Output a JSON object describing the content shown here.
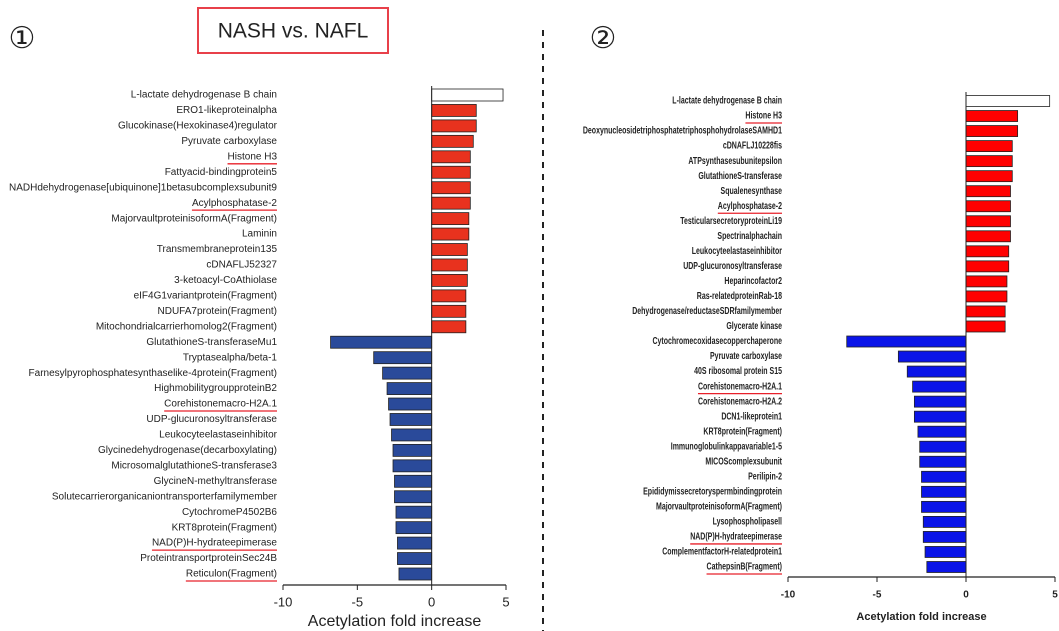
{
  "title": "NASH vs. NAFL",
  "chart_data": [
    {
      "type": "barh",
      "panel": "①",
      "xlabel": "Acetylation fold increase",
      "xlim": [
        -10,
        5
      ],
      "xticks": [
        -10,
        -5,
        0,
        5
      ],
      "categories": [
        "L-lactate dehydrogenase B chain",
        "ERO1-likeproteinalpha",
        "Glucokinase(Hexokinase4)regulator",
        "Pyruvate carboxylase",
        "Histone H3",
        "Fattyacid-bindingprotein5",
        "NADHdehydrogenase[ubiquinone]1betasubcomplexsubunit9",
        "Acylphosphatase-2",
        "MajorvaultproteinisoformA(Fragment)",
        "Laminin",
        "Transmembraneprotein135",
        "cDNAFLJ52327",
        "3-ketoacyl-CoAthiolase",
        "eIF4G1variantprotein(Fragment)",
        "NDUFA7protein(Fragment)",
        "Mitochondrialcarrierhomolog2(Fragment)",
        "GlutathioneS-transferaseMu1",
        "Tryptasealpha/beta-1",
        "Farnesylpyrophosphatesynthaselike-4protein(Fragment)",
        "HighmobilitygroupproteinB2",
        "Corehistonemacro-H2A.1",
        "UDP-glucuronosyltransferase",
        "Leukocyteelastaseinhibitor",
        "Glycinedehydrogenase(decarboxylating)",
        "MicrosomalglutathioneS-transferase3",
        "GlycineN-methyltransferase",
        "Solutecarrierorganicaniontransporterfamilymember",
        "CytochromeP4502B6",
        "KRT8protein(Fragment)",
        "NAD(P)H-hydrateepimerase",
        "ProteintransportproteinSec24B",
        "Reticulon(Fragment)"
      ],
      "values": [
        4.8,
        3.0,
        3.0,
        2.8,
        2.6,
        2.6,
        2.6,
        2.6,
        2.5,
        2.5,
        2.4,
        2.4,
        2.4,
        2.3,
        2.3,
        2.3,
        -6.8,
        -3.9,
        -3.3,
        -3.0,
        -2.9,
        -2.8,
        -2.7,
        -2.6,
        -2.6,
        -2.5,
        -2.5,
        -2.4,
        -2.4,
        -2.3,
        -2.3,
        -2.2
      ],
      "colors": [
        "#ffffff",
        "#e8321e",
        "#e8321e",
        "#e8321e",
        "#e8321e",
        "#e8321e",
        "#e8321e",
        "#e8321e",
        "#e8321e",
        "#e8321e",
        "#e8321e",
        "#e8321e",
        "#e8321e",
        "#e8321e",
        "#e8321e",
        "#e8321e",
        "#2a4a9a",
        "#2a4a9a",
        "#2a4a9a",
        "#2a4a9a",
        "#2a4a9a",
        "#2a4a9a",
        "#2a4a9a",
        "#2a4a9a",
        "#2a4a9a",
        "#2a4a9a",
        "#2a4a9a",
        "#2a4a9a",
        "#2a4a9a",
        "#2a4a9a",
        "#2a4a9a",
        "#2a4a9a"
      ],
      "underlined": [
        false,
        false,
        false,
        false,
        true,
        false,
        false,
        true,
        false,
        false,
        false,
        false,
        false,
        false,
        false,
        false,
        false,
        false,
        false,
        false,
        true,
        false,
        false,
        false,
        false,
        false,
        false,
        false,
        false,
        true,
        false,
        true
      ]
    },
    {
      "type": "barh",
      "panel": "②",
      "xlabel": "Acetylation fold increase",
      "xlim": [
        -10,
        5
      ],
      "xticks": [
        -10,
        -5,
        0,
        5
      ],
      "categories": [
        "L-lactate dehydrogenase B chain",
        "Histone H3",
        "DeoxynucleosidetriphosphatetriphosphohydrolaseSAMHD1",
        "cDNAFLJ10228fis",
        "ATPsynthasesubunitepsilon",
        "GlutathioneS-transferase",
        "Squalenesynthase",
        "Acylphosphatase-2",
        "TesticularsecretoryproteinLi19",
        "Spectrinalphachain",
        "Leukocyteelastaseinhibitor",
        "UDP-glucuronosyltransferase",
        "Heparincofactor2",
        "Ras-relatedproteinRab-18",
        "Dehydrogenase/reductaseSDRfamilymember",
        "Glycerate kinase",
        "Cytochromecoxidasecopperchaperone",
        "Pyruvate carboxylase",
        "40S ribosomal protein S15",
        "Corehistonemacro-H2A.1",
        "Corehistonemacro-H2A.2",
        "DCN1-likeprotein1",
        "KRT8protein(Fragment)",
        "Immunoglobulinkappavariable1-5",
        "MICOScomplexsubunit",
        "Perilipin-2",
        "Epididymissecretoryspermbindingprotein",
        "MajorvaultproteinisoformA(Fragment)",
        "Lysophospholipasell",
        "NAD(P)H-hydrateepimerase",
        "ComplementfactorH-relatedprotein1",
        "CathepsinB(Fragment)"
      ],
      "values": [
        4.7,
        2.9,
        2.9,
        2.6,
        2.6,
        2.6,
        2.5,
        2.5,
        2.5,
        2.5,
        2.4,
        2.4,
        2.3,
        2.3,
        2.2,
        2.2,
        -6.7,
        -3.8,
        -3.3,
        -3.0,
        -2.9,
        -2.9,
        -2.7,
        -2.6,
        -2.6,
        -2.5,
        -2.5,
        -2.5,
        -2.4,
        -2.4,
        -2.3,
        -2.2
      ],
      "colors": [
        "#ffffff",
        "#ff0000",
        "#ff0000",
        "#ff0000",
        "#ff0000",
        "#ff0000",
        "#ff0000",
        "#ff0000",
        "#ff0000",
        "#ff0000",
        "#ff0000",
        "#ff0000",
        "#ff0000",
        "#ff0000",
        "#ff0000",
        "#ff0000",
        "#0a14e8",
        "#0a14e8",
        "#0a14e8",
        "#0a14e8",
        "#0a14e8",
        "#0a14e8",
        "#0a14e8",
        "#0a14e8",
        "#0a14e8",
        "#0a14e8",
        "#0a14e8",
        "#0a14e8",
        "#0a14e8",
        "#0a14e8",
        "#0a14e8",
        "#0a14e8"
      ],
      "underlined": [
        false,
        true,
        false,
        false,
        false,
        false,
        false,
        true,
        false,
        false,
        false,
        false,
        false,
        false,
        false,
        false,
        false,
        false,
        false,
        true,
        false,
        false,
        false,
        false,
        false,
        false,
        false,
        false,
        false,
        true,
        false,
        true
      ]
    }
  ]
}
